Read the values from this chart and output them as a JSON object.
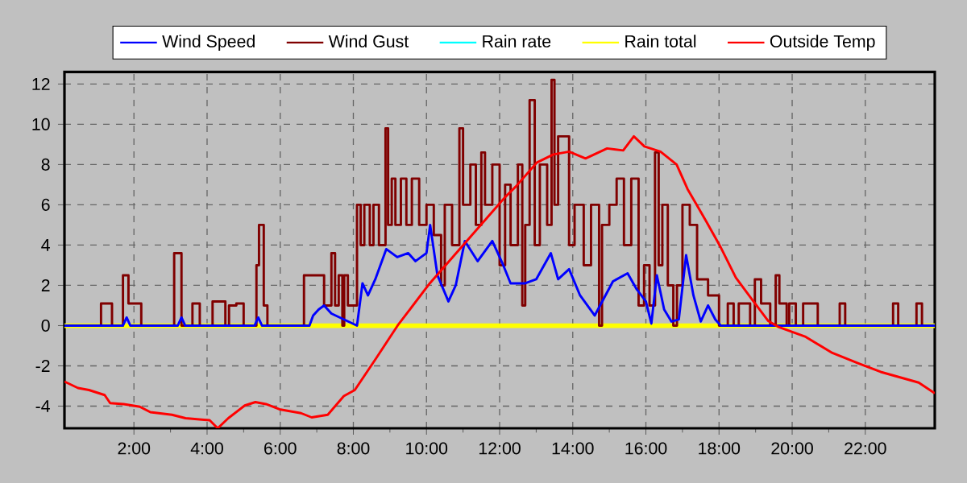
{
  "chart_data": {
    "type": "line",
    "xlim": [
      0.1,
      23.9
    ],
    "ylim": [
      -5.1,
      12.6
    ],
    "xticks": [
      {
        "value": 2,
        "label": "2:00"
      },
      {
        "value": 4,
        "label": "4:00"
      },
      {
        "value": 6,
        "label": "6:00"
      },
      {
        "value": 8,
        "label": "8:00"
      },
      {
        "value": 10,
        "label": "10:00"
      },
      {
        "value": 12,
        "label": "12:00"
      },
      {
        "value": 14,
        "label": "14:00"
      },
      {
        "value": 16,
        "label": "16:00"
      },
      {
        "value": 18,
        "label": "18:00"
      },
      {
        "value": 20,
        "label": "20:00"
      },
      {
        "value": 22,
        "label": "22:00"
      }
    ],
    "yticks": [
      -4,
      -2,
      0,
      2,
      4,
      6,
      8,
      10,
      12
    ],
    "grid": true,
    "legend": "top",
    "series": [
      {
        "name": "Wind Speed",
        "color": "#0000ff",
        "x": [
          0.1,
          1.7,
          1.8,
          1.9,
          3.2,
          3.3,
          3.4,
          5.3,
          5.4,
          5.5,
          6.8,
          6.9,
          7.05,
          7.2,
          7.4,
          8.1,
          8.25,
          8.4,
          8.6,
          8.9,
          9.2,
          9.5,
          9.7,
          10.0,
          10.1,
          10.3,
          10.6,
          10.8,
          11.05,
          11.4,
          11.8,
          12.1,
          12.3,
          12.7,
          13.0,
          13.4,
          13.6,
          13.9,
          14.2,
          14.6,
          15.1,
          15.5,
          15.75,
          16.0,
          16.15,
          16.3,
          16.5,
          16.7,
          16.9,
          17.1,
          17.3,
          17.5,
          17.7,
          17.9,
          18.05,
          23.9
        ],
        "values": [
          0,
          0,
          0.4,
          0,
          0,
          0.4,
          0,
          0,
          0.4,
          0,
          0,
          0.5,
          0.8,
          1.0,
          0.6,
          0,
          2.1,
          1.5,
          2.3,
          3.8,
          3.4,
          3.6,
          3.2,
          3.6,
          5.0,
          2.5,
          1.2,
          2.0,
          4.2,
          3.2,
          4.2,
          3.0,
          2.1,
          2.1,
          2.3,
          3.6,
          2.3,
          2.8,
          1.5,
          0.5,
          2.2,
          2.6,
          1.8,
          1.2,
          0.1,
          2.5,
          0.8,
          0.2,
          0.3,
          3.5,
          1.5,
          0.2,
          1.0,
          0.3,
          0,
          0
        ]
      },
      {
        "name": "Wind Gust",
        "color": "#800000",
        "type": "step",
        "x": [
          0.1,
          1.1,
          1.4,
          1.7,
          1.85,
          2.2,
          3.1,
          3.3,
          3.6,
          3.8,
          4.15,
          4.5,
          4.6,
          4.8,
          5.0,
          5.35,
          5.42,
          5.55,
          5.65,
          6.65,
          7.2,
          7.4,
          7.5,
          7.6,
          7.7,
          7.75,
          7.85,
          8.1,
          8.2,
          8.3,
          8.45,
          8.55,
          8.7,
          8.88,
          8.95,
          9.05,
          9.15,
          9.3,
          9.45,
          9.6,
          9.8,
          10.0,
          10.2,
          10.4,
          10.5,
          10.7,
          10.9,
          11.0,
          11.2,
          11.35,
          11.5,
          11.6,
          11.8,
          12.0,
          12.15,
          12.3,
          12.5,
          12.62,
          12.7,
          12.82,
          12.96,
          13.1,
          13.3,
          13.42,
          13.5,
          13.6,
          13.9,
          14.05,
          14.3,
          14.5,
          14.72,
          14.8,
          15.0,
          15.2,
          15.4,
          15.6,
          15.8,
          15.95,
          16.1,
          16.25,
          16.35,
          16.45,
          16.6,
          16.75,
          16.85,
          17.0,
          17.2,
          17.4,
          17.7,
          18.0,
          18.24,
          18.4,
          18.54,
          18.85,
          18.98,
          19.15,
          19.4,
          19.55,
          19.65,
          19.85,
          19.92,
          20.1,
          20.3,
          20.7,
          21.3,
          21.45,
          22.76,
          22.9,
          23.4,
          23.55,
          23.9
        ],
        "values": [
          0,
          1.1,
          0,
          2.5,
          1.1,
          0,
          3.6,
          0,
          1.1,
          0,
          1.2,
          0,
          1.0,
          1.1,
          0,
          3.0,
          5.0,
          1.0,
          0,
          2.5,
          1.0,
          3.6,
          1.0,
          2.5,
          0,
          2.5,
          1.0,
          6.0,
          4.0,
          6.0,
          4.0,
          6.0,
          4.0,
          9.8,
          5.0,
          7.3,
          5.0,
          7.3,
          5.0,
          7.3,
          5.0,
          6.0,
          4.5,
          2.0,
          6.0,
          4.0,
          9.8,
          6.0,
          8.0,
          5.0,
          8.6,
          6.0,
          8.0,
          3.0,
          7.0,
          4.0,
          8.0,
          1.0,
          5.0,
          11.2,
          4.0,
          8.0,
          5.0,
          12.2,
          6.0,
          9.4,
          4.0,
          6.0,
          3.0,
          6.0,
          0,
          5.0,
          6.0,
          7.3,
          4.0,
          7.3,
          1.0,
          3.0,
          1.0,
          8.6,
          3.0,
          6.0,
          2.0,
          0,
          2.0,
          6.0,
          5.0,
          2.3,
          1.5,
          0,
          1.1,
          0,
          1.1,
          0,
          2.3,
          1.1,
          0,
          2.5,
          1.1,
          0,
          1.1,
          0,
          1.1,
          0,
          1.1,
          0,
          1.1,
          0,
          1.1,
          0,
          0
        ]
      },
      {
        "name": "Rain rate",
        "color": "#00ffff"
      },
      {
        "name": "Rain total",
        "color": "#ffff00",
        "x": [
          0.1,
          23.9
        ],
        "values": [
          0,
          0
        ]
      },
      {
        "name": "Outside Temp",
        "color": "#ff0000",
        "x": [
          0.1,
          0.47,
          0.77,
          1.2,
          1.35,
          1.72,
          2.16,
          2.45,
          3.04,
          3.41,
          4.07,
          4.29,
          4.58,
          5.03,
          5.32,
          5.61,
          5.98,
          6.57,
          6.86,
          7.3,
          7.74,
          8.04,
          8.62,
          9.21,
          10.09,
          11.12,
          12.15,
          12.44,
          13.02,
          13.47,
          13.9,
          14.35,
          14.94,
          15.38,
          15.67,
          15.96,
          16.4,
          16.84,
          17.14,
          17.65,
          18.02,
          18.46,
          18.9,
          19.34,
          19.64,
          20.37,
          21.1,
          21.84,
          22.42,
          23.46,
          23.9
        ],
        "values": [
          -2.78,
          -3.1,
          -3.2,
          -3.45,
          -3.85,
          -3.9,
          -4.03,
          -4.3,
          -4.43,
          -4.6,
          -4.7,
          -5.1,
          -4.6,
          -3.97,
          -3.8,
          -3.9,
          -4.16,
          -4.35,
          -4.56,
          -4.43,
          -3.5,
          -3.2,
          -1.63,
          0,
          2.1,
          4.24,
          6.38,
          6.9,
          8.1,
          8.5,
          8.64,
          8.3,
          8.8,
          8.7,
          9.4,
          8.9,
          8.64,
          8.0,
          6.78,
          5.18,
          3.98,
          2.38,
          1.3,
          0.24,
          -0.08,
          -0.56,
          -1.36,
          -1.9,
          -2.3,
          -2.83,
          -3.36
        ]
      }
    ]
  }
}
